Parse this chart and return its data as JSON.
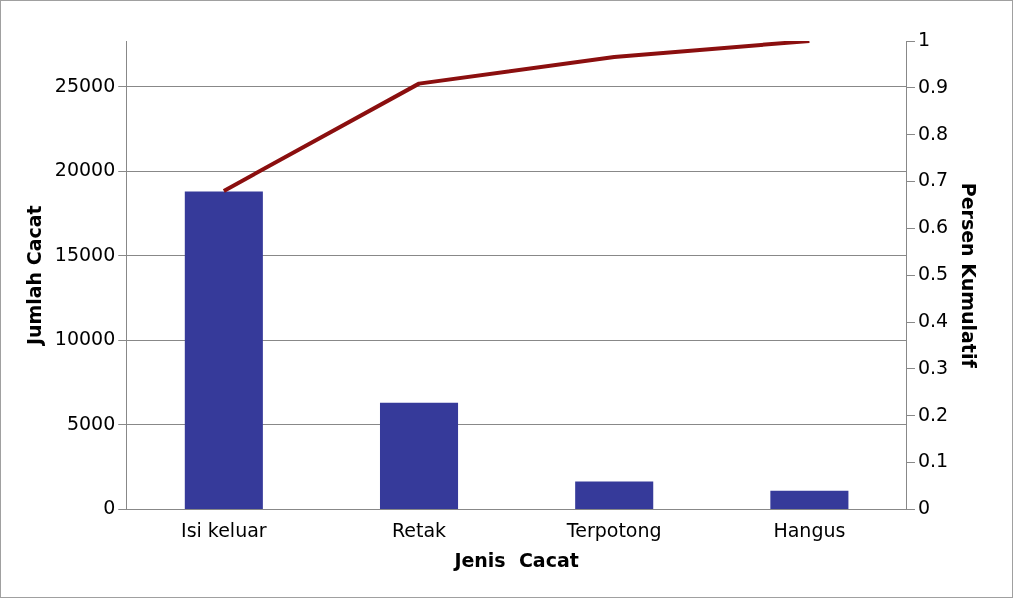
{
  "chart_data": {
    "type": "bar",
    "xlabel": "Jenis  Cacat",
    "ylabel": "Jumlah Cacat",
    "y2label": "Persen Kumulatif",
    "categories": [
      "Isi keluar",
      "Retak",
      "Terpotong",
      "Hangus"
    ],
    "series": [
      {
        "color": "#363a9a",
        "values": [
          18800,
          6300,
          1650,
          1100
        ]
      },
      {
        "type": "line",
        "color": "#8b0f0f",
        "axis": "y2",
        "marker": "none",
        "values": [
          0.68,
          0.909,
          0.966,
          1.0
        ]
      }
    ],
    "ylim": [
      0,
      27700
    ],
    "yticks": [
      0,
      5000,
      10000,
      15000,
      20000,
      25000
    ],
    "y2lim": [
      0,
      1
    ],
    "y2ticks": [
      0,
      0.1,
      0.2,
      0.3,
      0.4,
      0.5,
      0.6,
      0.7,
      0.8,
      0.9,
      1
    ],
    "grid": "y",
    "legend": false
  }
}
